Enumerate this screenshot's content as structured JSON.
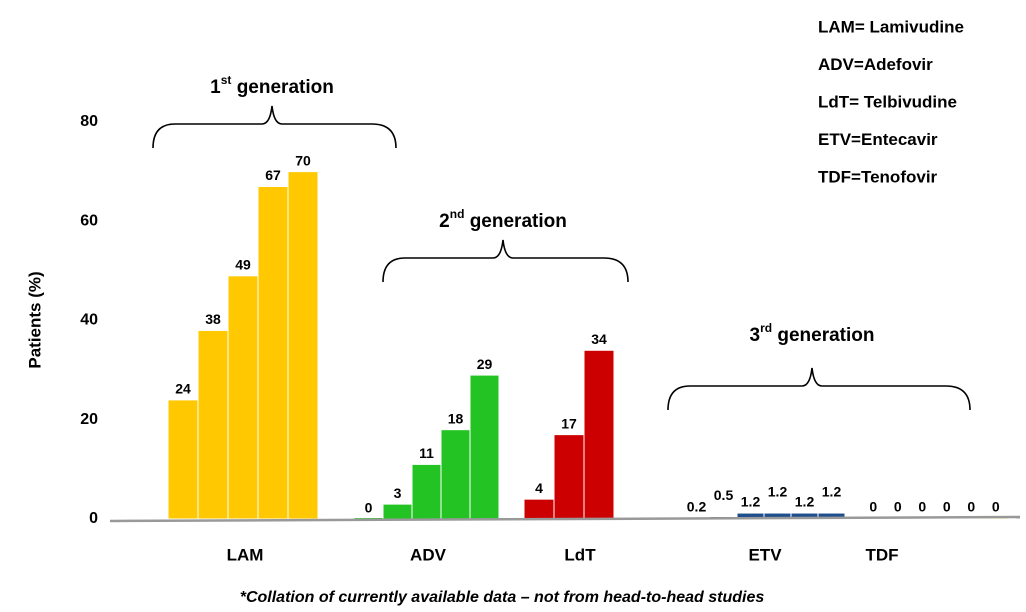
{
  "chart_data": {
    "type": "grouped-bar",
    "ylabel": "Patients (%)",
    "ylim": [
      0,
      80
    ],
    "yticks": [
      0,
      20,
      40,
      60,
      80
    ],
    "grid": false,
    "groups": [
      {
        "category": "LAM",
        "color": "#ffc800",
        "values": [
          24,
          38,
          49,
          67,
          70
        ]
      },
      {
        "category": "ADV",
        "color": "#22c322",
        "values": [
          0,
          3,
          11,
          18,
          29
        ]
      },
      {
        "category": "LdT",
        "color": "#cc0000",
        "values": [
          4,
          17,
          34
        ]
      },
      {
        "category": "ETV",
        "color": "#1f4e8c",
        "values": [
          0.2,
          0.5,
          1.2,
          1.2,
          1.2,
          1.2
        ]
      },
      {
        "category": "TDF",
        "color": "#e8e040",
        "values": [
          0,
          0,
          0,
          0,
          0,
          0
        ]
      }
    ],
    "annotations": [
      {
        "num": "1",
        "sup": "st",
        "text": "generation"
      },
      {
        "num": "2",
        "sup": "nd",
        "text": "generation"
      },
      {
        "num": "3",
        "sup": "rd",
        "text": "generation"
      }
    ],
    "key": [
      "LAM= Lamivudine",
      "ADV=Adefovir",
      "LdT= Telbivudine",
      "ETV=Entecavir",
      "TDF=Tenofovir"
    ],
    "footnote": "*Collation of currently available data – not from head-to-head studies"
  }
}
